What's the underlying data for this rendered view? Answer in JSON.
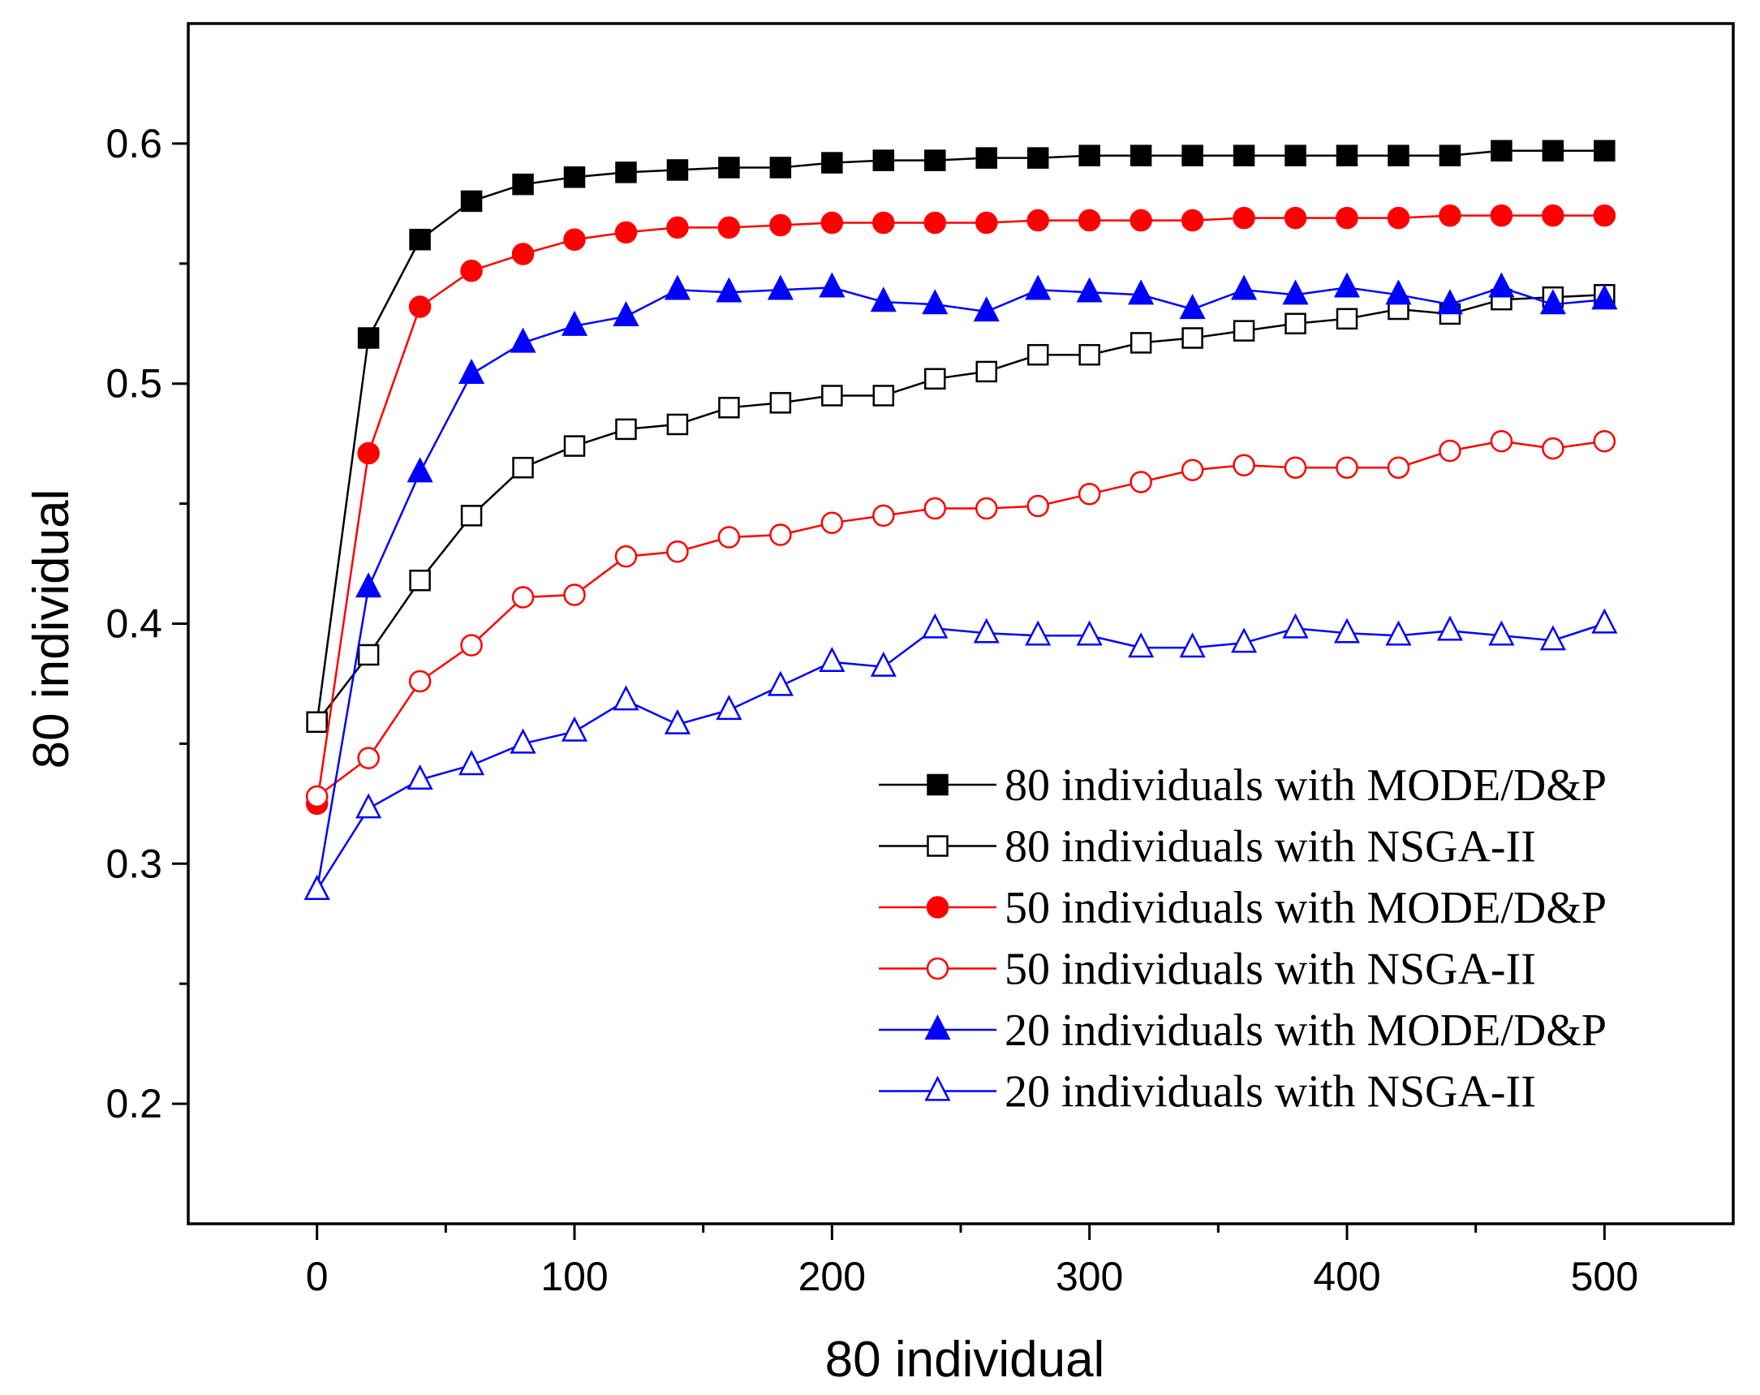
{
  "chart_data": {
    "type": "line",
    "title": "",
    "xlabel": "80 individual",
    "ylabel": "80 individual",
    "xlim": [
      -50,
      550
    ],
    "ylim": [
      0.15,
      0.65
    ],
    "grid": false,
    "legend_position": "bottom-right",
    "x_major_ticks": [
      0,
      100,
      200,
      300,
      400,
      500
    ],
    "x_tick_labels": [
      "0",
      "100",
      "200",
      "300",
      "400",
      "500"
    ],
    "x_minor_ticks": [
      50,
      150,
      250,
      350,
      450
    ],
    "y_major_ticks": [
      0.2,
      0.3,
      0.4,
      0.5,
      0.6
    ],
    "y_tick_labels": [
      "0.2",
      "0.3",
      "0.4",
      "0.5",
      "0.6"
    ],
    "y_minor_ticks": [
      0.25,
      0.35,
      0.45,
      0.55
    ],
    "x": [
      0,
      20,
      40,
      60,
      80,
      100,
      120,
      140,
      160,
      180,
      200,
      220,
      240,
      260,
      280,
      300,
      320,
      340,
      360,
      380,
      400,
      420,
      440,
      460,
      480,
      500
    ],
    "series": [
      {
        "name": "80 individuals with MODE/D&P",
        "color": "#000000",
        "marker": "square",
        "filled": true,
        "values": [
          0.359,
          0.519,
          0.56,
          0.576,
          0.583,
          0.586,
          0.588,
          0.589,
          0.59,
          0.59,
          0.592,
          0.593,
          0.593,
          0.594,
          0.594,
          0.595,
          0.595,
          0.595,
          0.595,
          0.595,
          0.595,
          0.595,
          0.595,
          0.597,
          0.597,
          0.597
        ]
      },
      {
        "name": "80 individuals with NSGA-II",
        "color": "#000000",
        "marker": "square",
        "filled": false,
        "values": [
          0.359,
          0.387,
          0.418,
          0.445,
          0.465,
          0.474,
          0.481,
          0.483,
          0.49,
          0.492,
          0.495,
          0.495,
          0.502,
          0.505,
          0.512,
          0.512,
          0.517,
          0.519,
          0.522,
          0.525,
          0.527,
          0.531,
          0.529,
          0.535,
          0.536,
          0.537
        ]
      },
      {
        "name": "50 individuals with MODE/D&P",
        "color": "#ff0000",
        "marker": "circle",
        "filled": true,
        "values": [
          0.325,
          0.471,
          0.532,
          0.547,
          0.554,
          0.56,
          0.563,
          0.565,
          0.565,
          0.566,
          0.567,
          0.567,
          0.567,
          0.567,
          0.568,
          0.568,
          0.568,
          0.568,
          0.569,
          0.569,
          0.569,
          0.569,
          0.57,
          0.57,
          0.57,
          0.57
        ]
      },
      {
        "name": "50 individuals with NSGA-II",
        "color": "#ff0000",
        "marker": "circle",
        "filled": false,
        "values": [
          0.328,
          0.344,
          0.376,
          0.391,
          0.411,
          0.412,
          0.428,
          0.43,
          0.436,
          0.437,
          0.442,
          0.445,
          0.448,
          0.448,
          0.449,
          0.454,
          0.459,
          0.464,
          0.466,
          0.465,
          0.465,
          0.465,
          0.472,
          0.476,
          0.473,
          0.476
        ]
      },
      {
        "name": "20 individuals with MODE/D&P",
        "color": "#0000ff",
        "marker": "triangle",
        "filled": true,
        "values": [
          0.289,
          0.415,
          0.463,
          0.504,
          0.517,
          0.524,
          0.528,
          0.539,
          0.538,
          0.539,
          0.54,
          0.534,
          0.533,
          0.53,
          0.539,
          0.538,
          0.537,
          0.531,
          0.539,
          0.537,
          0.54,
          0.537,
          0.533,
          0.54,
          0.533,
          0.535
        ]
      },
      {
        "name": "20 individuals with NSGA-II",
        "color": "#0000ff",
        "marker": "triangle",
        "filled": false,
        "values": [
          0.289,
          0.323,
          0.335,
          0.341,
          0.35,
          0.355,
          0.368,
          0.358,
          0.364,
          0.374,
          0.384,
          0.382,
          0.398,
          0.396,
          0.395,
          0.395,
          0.39,
          0.39,
          0.392,
          0.398,
          0.396,
          0.395,
          0.397,
          0.395,
          0.393,
          0.4
        ]
      }
    ]
  }
}
